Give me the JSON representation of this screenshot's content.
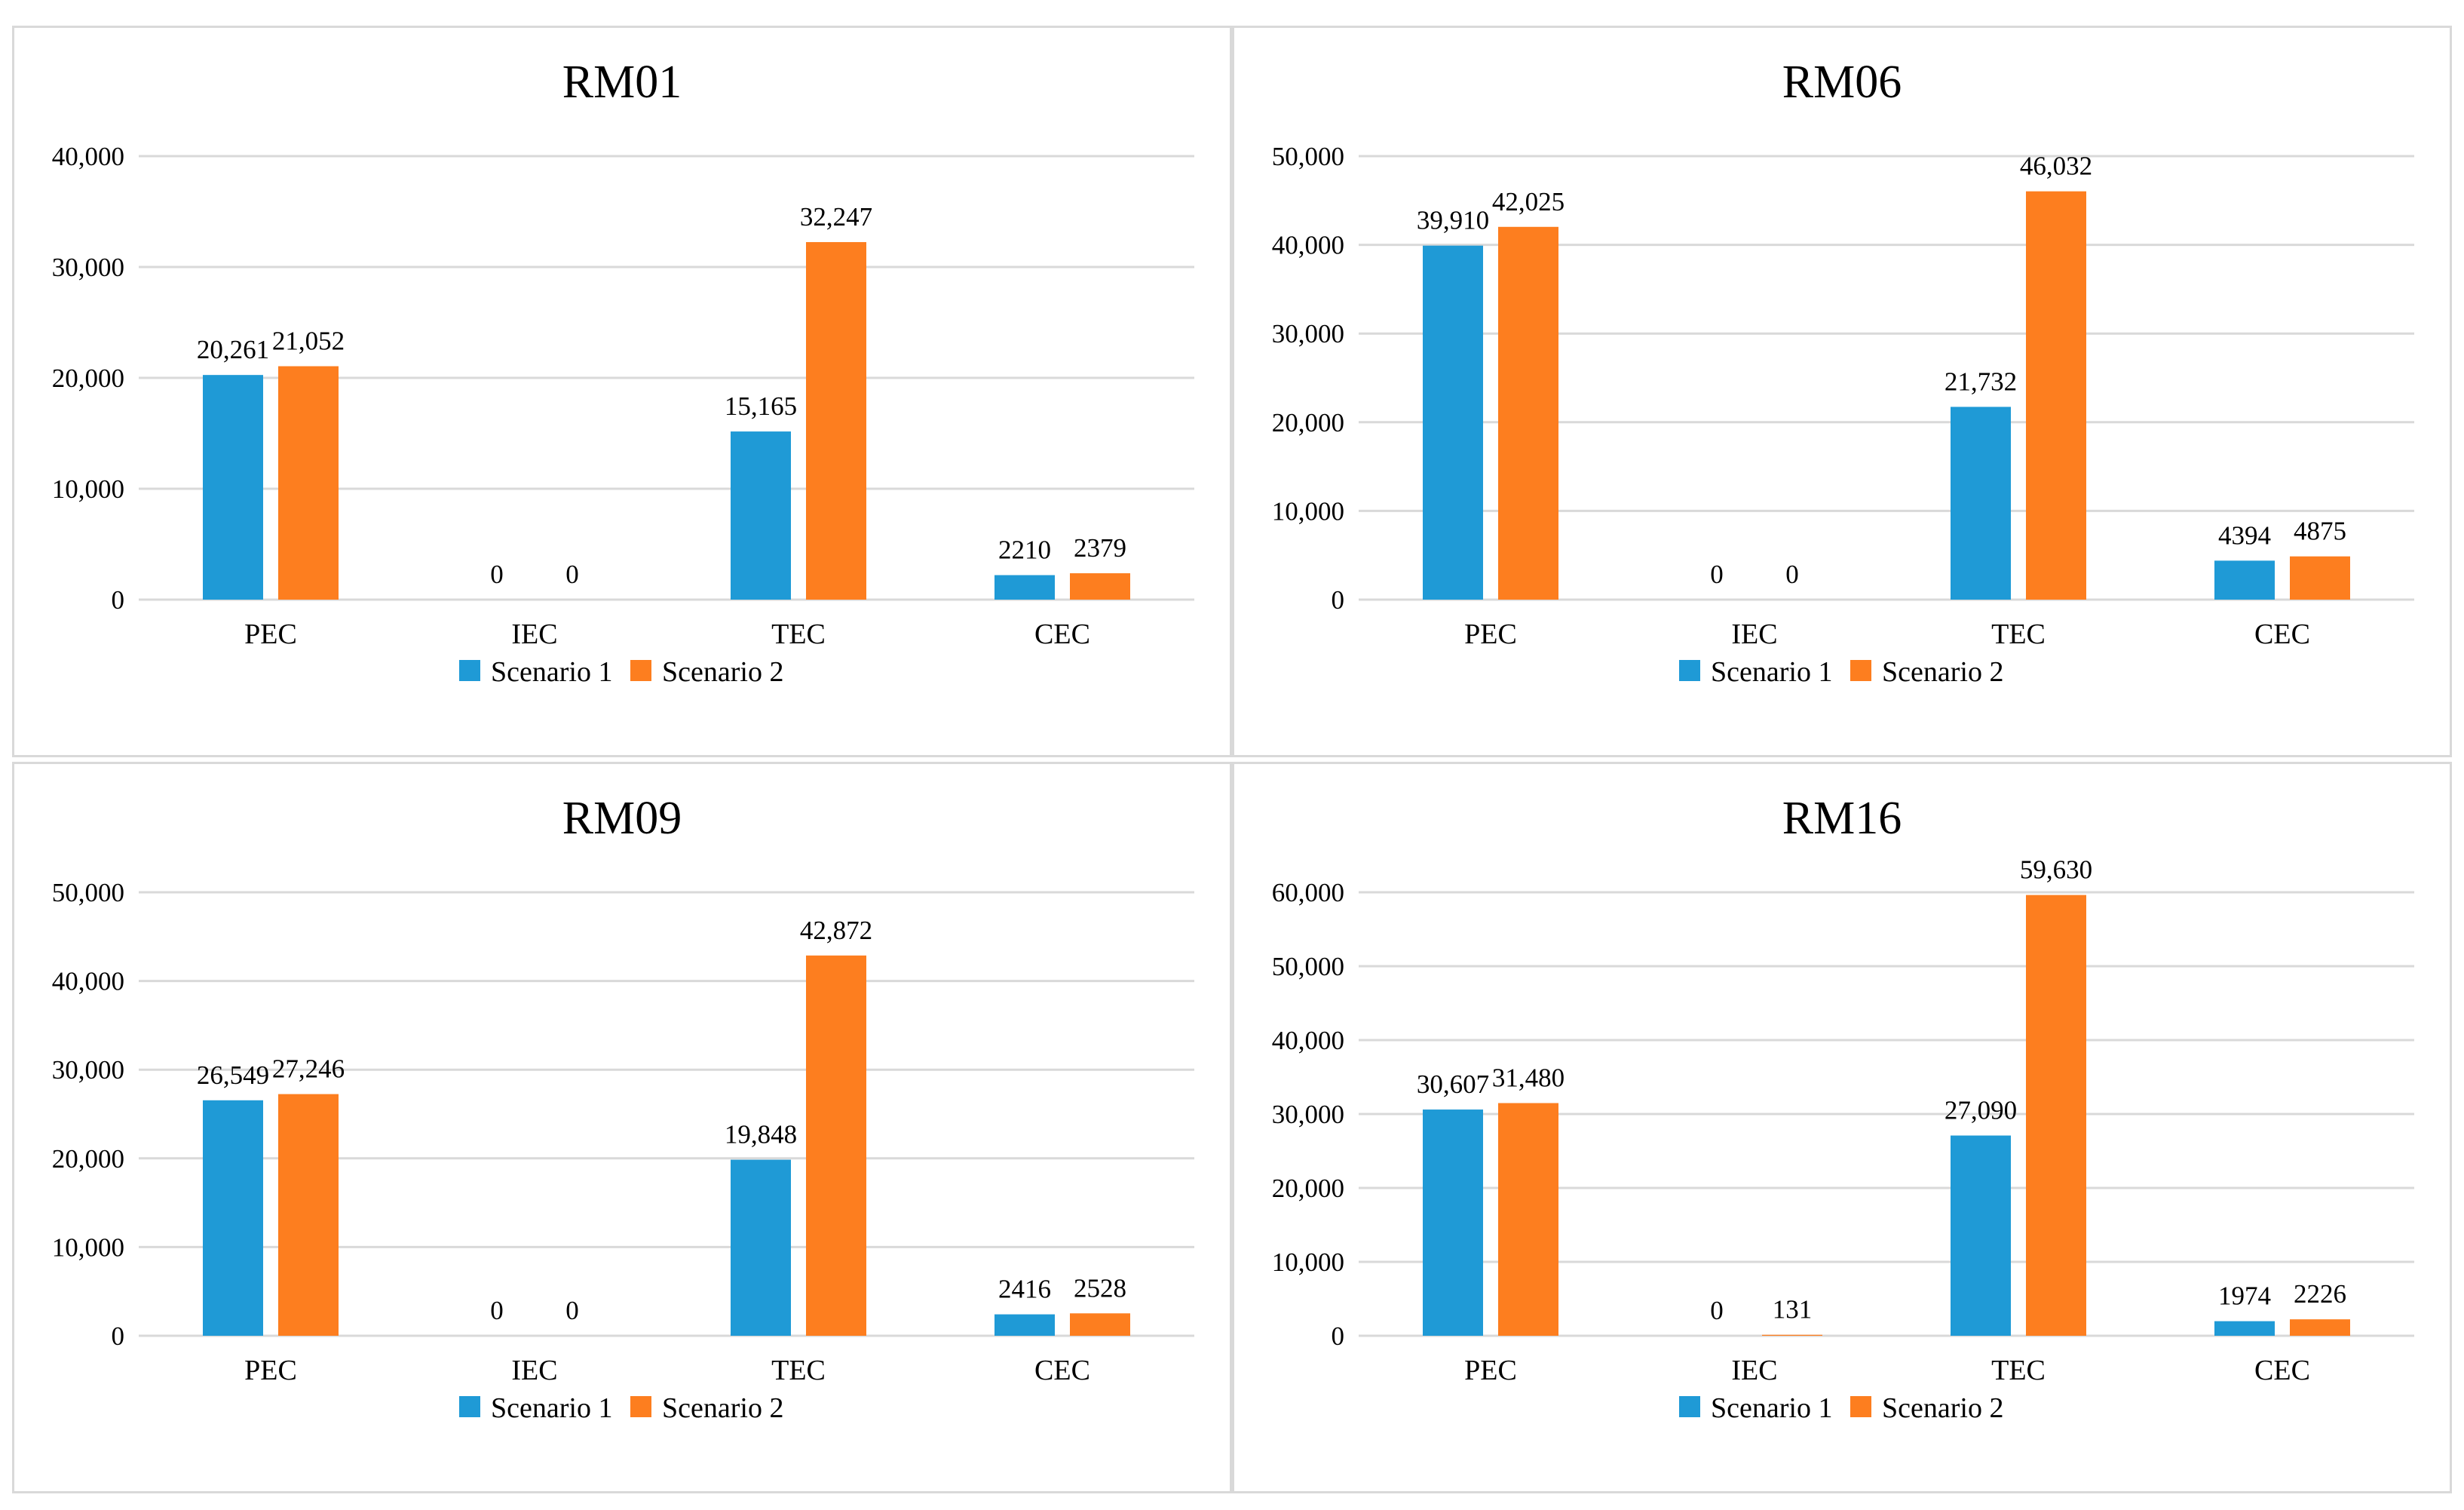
{
  "chart_data": [
    {
      "type": "bar",
      "title": "RM01",
      "categories": [
        "PEC",
        "IEC",
        "TEC",
        "CEC"
      ],
      "series": [
        {
          "name": "Scenario 1",
          "values": [
            20261,
            0,
            15165,
            2210
          ],
          "labels": [
            "20,261",
            "0",
            "15,165",
            "2210"
          ]
        },
        {
          "name": "Scenario 2",
          "values": [
            21052,
            0,
            32247,
            2379
          ],
          "labels": [
            "21,052",
            "0",
            "32,247",
            "2379"
          ]
        }
      ],
      "yticks": [
        "0",
        "10,000",
        "20,000",
        "30,000",
        "40,000"
      ],
      "ylim": [
        0,
        40000
      ],
      "legend": "bottom"
    },
    {
      "type": "bar",
      "title": "RM06",
      "categories": [
        "PEC",
        "IEC",
        "TEC",
        "CEC"
      ],
      "series": [
        {
          "name": "Scenario 1",
          "values": [
            39910,
            0,
            21732,
            4394
          ],
          "labels": [
            "39,910",
            "0",
            "21,732",
            "4394"
          ]
        },
        {
          "name": "Scenario 2",
          "values": [
            42025,
            0,
            46032,
            4875
          ],
          "labels": [
            "42,025",
            "0",
            "46,032",
            "4875"
          ]
        }
      ],
      "yticks": [
        "0",
        "10,000",
        "20,000",
        "30,000",
        "40,000",
        "50,000"
      ],
      "ylim": [
        0,
        50000
      ],
      "legend": "bottom"
    },
    {
      "type": "bar",
      "title": "RM09",
      "categories": [
        "PEC",
        "IEC",
        "TEC",
        "CEC"
      ],
      "series": [
        {
          "name": "Scenario 1",
          "values": [
            26549,
            0,
            19848,
            2416
          ],
          "labels": [
            "26,549",
            "0",
            "19,848",
            "2416"
          ]
        },
        {
          "name": "Scenario 2",
          "values": [
            27246,
            0,
            42872,
            2528
          ],
          "labels": [
            "27,246",
            "0",
            "42,872",
            "2528"
          ]
        }
      ],
      "yticks": [
        "0",
        "10,000",
        "20,000",
        "30,000",
        "40,000",
        "50,000"
      ],
      "ylim": [
        0,
        50000
      ],
      "legend": "bottom"
    },
    {
      "type": "bar",
      "title": "RM16",
      "categories": [
        "PEC",
        "IEC",
        "TEC",
        "CEC"
      ],
      "series": [
        {
          "name": "Scenario 1",
          "values": [
            30607,
            0,
            27090,
            1974
          ],
          "labels": [
            "30,607",
            "0",
            "27,090",
            "1974"
          ]
        },
        {
          "name": "Scenario 2",
          "values": [
            31480,
            131,
            59630,
            2226
          ],
          "labels": [
            "31,480",
            "131",
            "59,630",
            "2226"
          ]
        }
      ],
      "yticks": [
        "0",
        "10,000",
        "20,000",
        "30,000",
        "40,000",
        "50,000",
        "60,000"
      ],
      "ylim": [
        0,
        60000
      ],
      "legend": "bottom"
    }
  ],
  "colors": {
    "scenario_1": "#1f9ad6",
    "scenario_2": "#fd7e1f",
    "gridline": "#d9d9d9",
    "panel_border": "#d9d9d9"
  }
}
